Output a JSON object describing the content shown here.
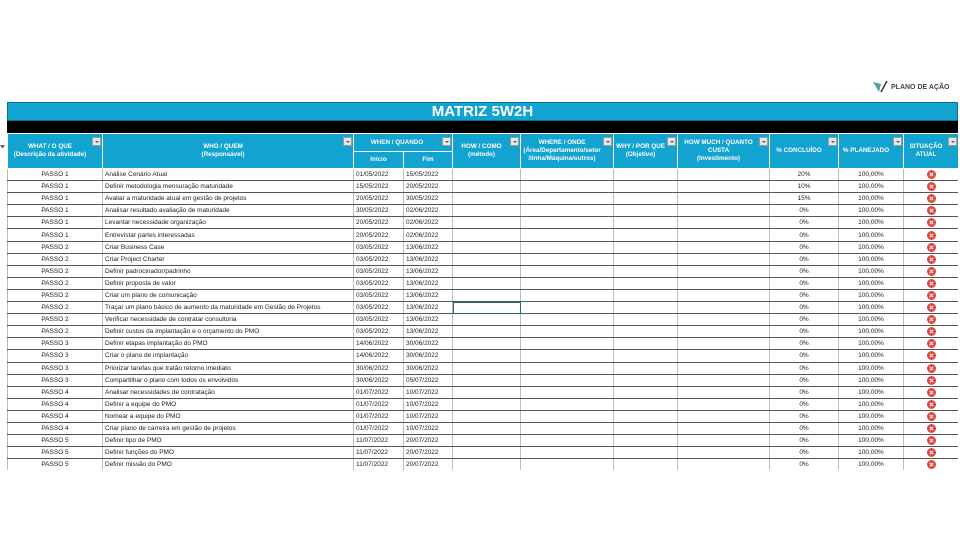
{
  "logo": {
    "text": "PLANO DE AÇÃO"
  },
  "title": "MATRIZ 5W2H",
  "headers": {
    "what": [
      "WHAT / O QUE",
      "(Descrição da atividade)"
    ],
    "who": [
      "WHO / QUEM",
      "(Responsável)"
    ],
    "when": "WHEN / QUANDO",
    "inicio": "Início",
    "fim": "Fim",
    "how": [
      "HOW / COMO",
      "(método)"
    ],
    "where": [
      "WHERE / ONDE",
      "(Área/Departamento/setor",
      "/linha/Máquina/outros)"
    ],
    "why": [
      "WHY / POR QUE",
      "(Objetivo)"
    ],
    "howmuch": [
      "HOW MUCH / QUANTO",
      "CUSTA",
      "(Investimento)"
    ],
    "concluido": "% CONCLUÍDO",
    "planejado": "% PLANEJADO",
    "situacao": [
      "SITUAÇÃO",
      "ATUAL"
    ]
  },
  "colors": {
    "header": "#12a3d1",
    "status_late": "#e0463a"
  },
  "rows": [
    [
      "PASSO 1",
      "Análise Cenário Atual",
      "01/05/2022",
      "15/05/2022",
      "20%",
      "100,00%"
    ],
    [
      "PASSO 1",
      "Definir metodologia mensuração maturidade",
      "15/05/2022",
      "20/05/2022",
      "10%",
      "100,00%"
    ],
    [
      "PASSO 1",
      "Avaliar a maturidade atual em gestão de projetos",
      "20/05/2022",
      "30/05/2022",
      "15%",
      "100,00%"
    ],
    [
      "PASSO 1",
      "Analisar resultado avaliação de maturidade",
      "30/05/2022",
      "02/06/2022",
      "0%",
      "100,00%"
    ],
    [
      "PASSO 1",
      "Levantar necessidade organização",
      "20/05/2022",
      "02/06/2022",
      "0%",
      "100,00%"
    ],
    [
      "PASSO 1",
      "Entrevistar partes interessadas",
      "20/05/2022",
      "02/06/2022",
      "0%",
      "100,00%"
    ],
    [
      "PASSO 2",
      "Criar Business Case",
      "03/05/2022",
      "13/06/2022",
      "0%",
      "100,00%"
    ],
    [
      "PASSO 2",
      "Criar Project Charter",
      "03/05/2022",
      "13/06/2022",
      "0%",
      "100,00%"
    ],
    [
      "PASSO 2",
      "Definir padrocinador/padrinho",
      "03/05/2022",
      "13/06/2022",
      "0%",
      "100,00%"
    ],
    [
      "PASSO 2",
      "Definir proposta de valor",
      "03/05/2022",
      "13/06/2022",
      "0%",
      "100,00%"
    ],
    [
      "PASSO 2",
      "Criar um plano de comunicação",
      "03/05/2022",
      "13/06/2022",
      "0%",
      "100,00%"
    ],
    [
      "PASSO 2",
      "Traçar um plano básico de aumento da maturidade em Gestão de Projetos",
      "03/05/2022",
      "13/06/2022",
      "0%",
      "100,00%"
    ],
    [
      "PASSO 2",
      "Verificar necessidade de contratar consultoria",
      "03/05/2022",
      "13/06/2022",
      "0%",
      "100,00%"
    ],
    [
      "PASSO 2",
      "Definir custos da implantação e o orçamento do PMO",
      "03/05/2022",
      "13/06/2022",
      "0%",
      "100,00%"
    ],
    [
      "PASSO 3",
      "Definir etapas implantação do PMO",
      "14/06/2022",
      "30/06/2022",
      "0%",
      "100,00%"
    ],
    [
      "PASSO 3",
      "Criar o plano de implantação",
      "14/06/2022",
      "30/06/2022",
      "0%",
      "100,00%"
    ],
    [
      "PASSO 3",
      "Priorizar tarefas que tratão retorno imediato",
      "30/06/2022",
      "30/06/2022",
      "0%",
      "100,00%"
    ],
    [
      "PASSO 3",
      "Compartilhar o plano com todos os envolvidos",
      "30/06/2022",
      "05/07/2022",
      "0%",
      "100,00%"
    ],
    [
      "PASSO 4",
      "Analisar necessidades de contratação",
      "01/07/2022",
      "10/07/2022",
      "0%",
      "100,00%"
    ],
    [
      "PASSO 4",
      "Definir a equipe do PMO",
      "01/07/2022",
      "10/07/2022",
      "0%",
      "100,00%"
    ],
    [
      "PASSO 4",
      "Nomear a equipe do PMO",
      "01/07/2022",
      "10/07/2022",
      "0%",
      "100,00%"
    ],
    [
      "PASSO 4",
      "Criar plano de carreira em gestão de projetos",
      "01/07/2022",
      "10/07/2022",
      "0%",
      "100,00%"
    ],
    [
      "PASSO 5",
      "Definir tipo de PMO",
      "11/07/2022",
      "20/07/2022",
      "0%",
      "100,00%"
    ],
    [
      "PASSO 5",
      "Definir funções do PMO",
      "11/07/2022",
      "20/07/2022",
      "0%",
      "100,00%"
    ],
    [
      "PASSO 5",
      "Definir missão do PMO",
      "11/07/2022",
      "20/07/2022",
      "0%",
      "100,00%"
    ]
  ]
}
